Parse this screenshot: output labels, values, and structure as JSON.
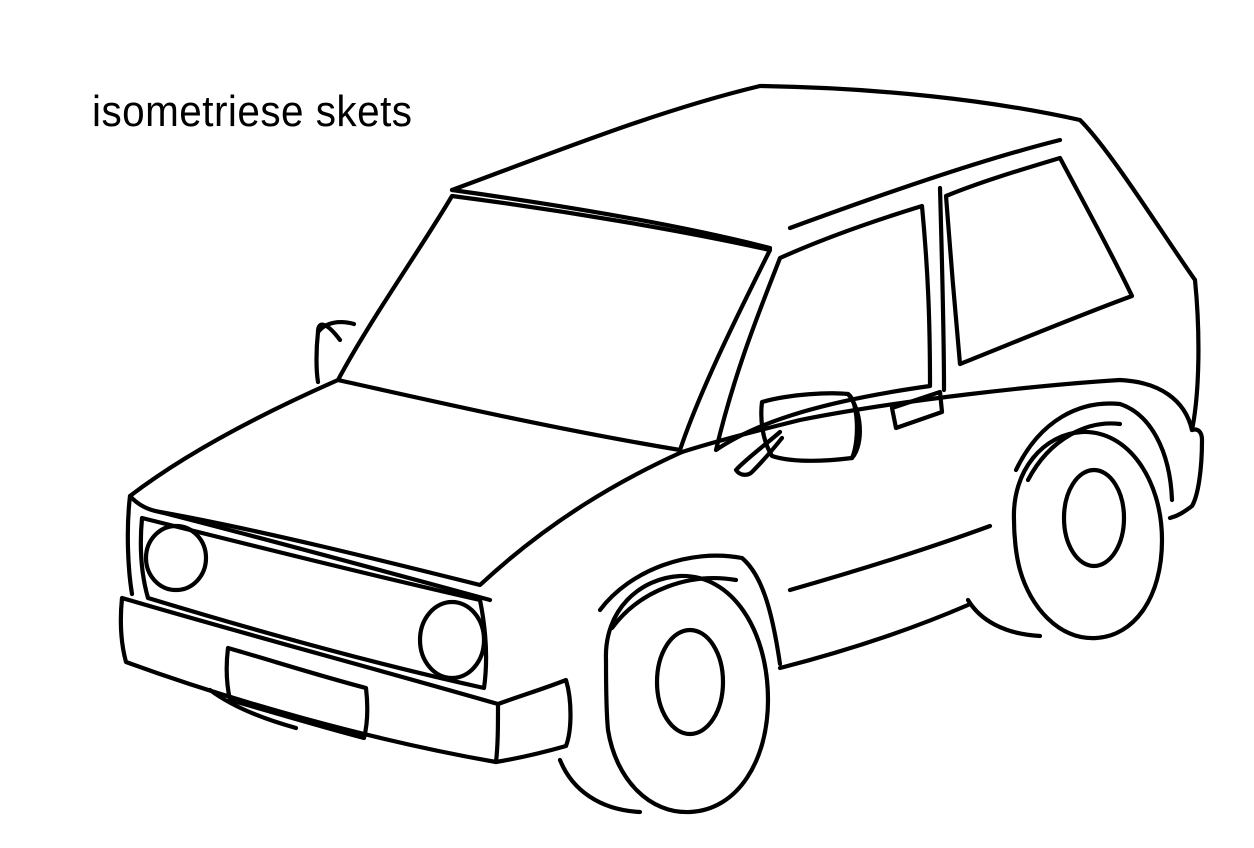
{
  "caption": "isometriese skets",
  "colors": {
    "line": "#000000",
    "background": "#ffffff"
  },
  "subject": "car-isometric-sketch"
}
